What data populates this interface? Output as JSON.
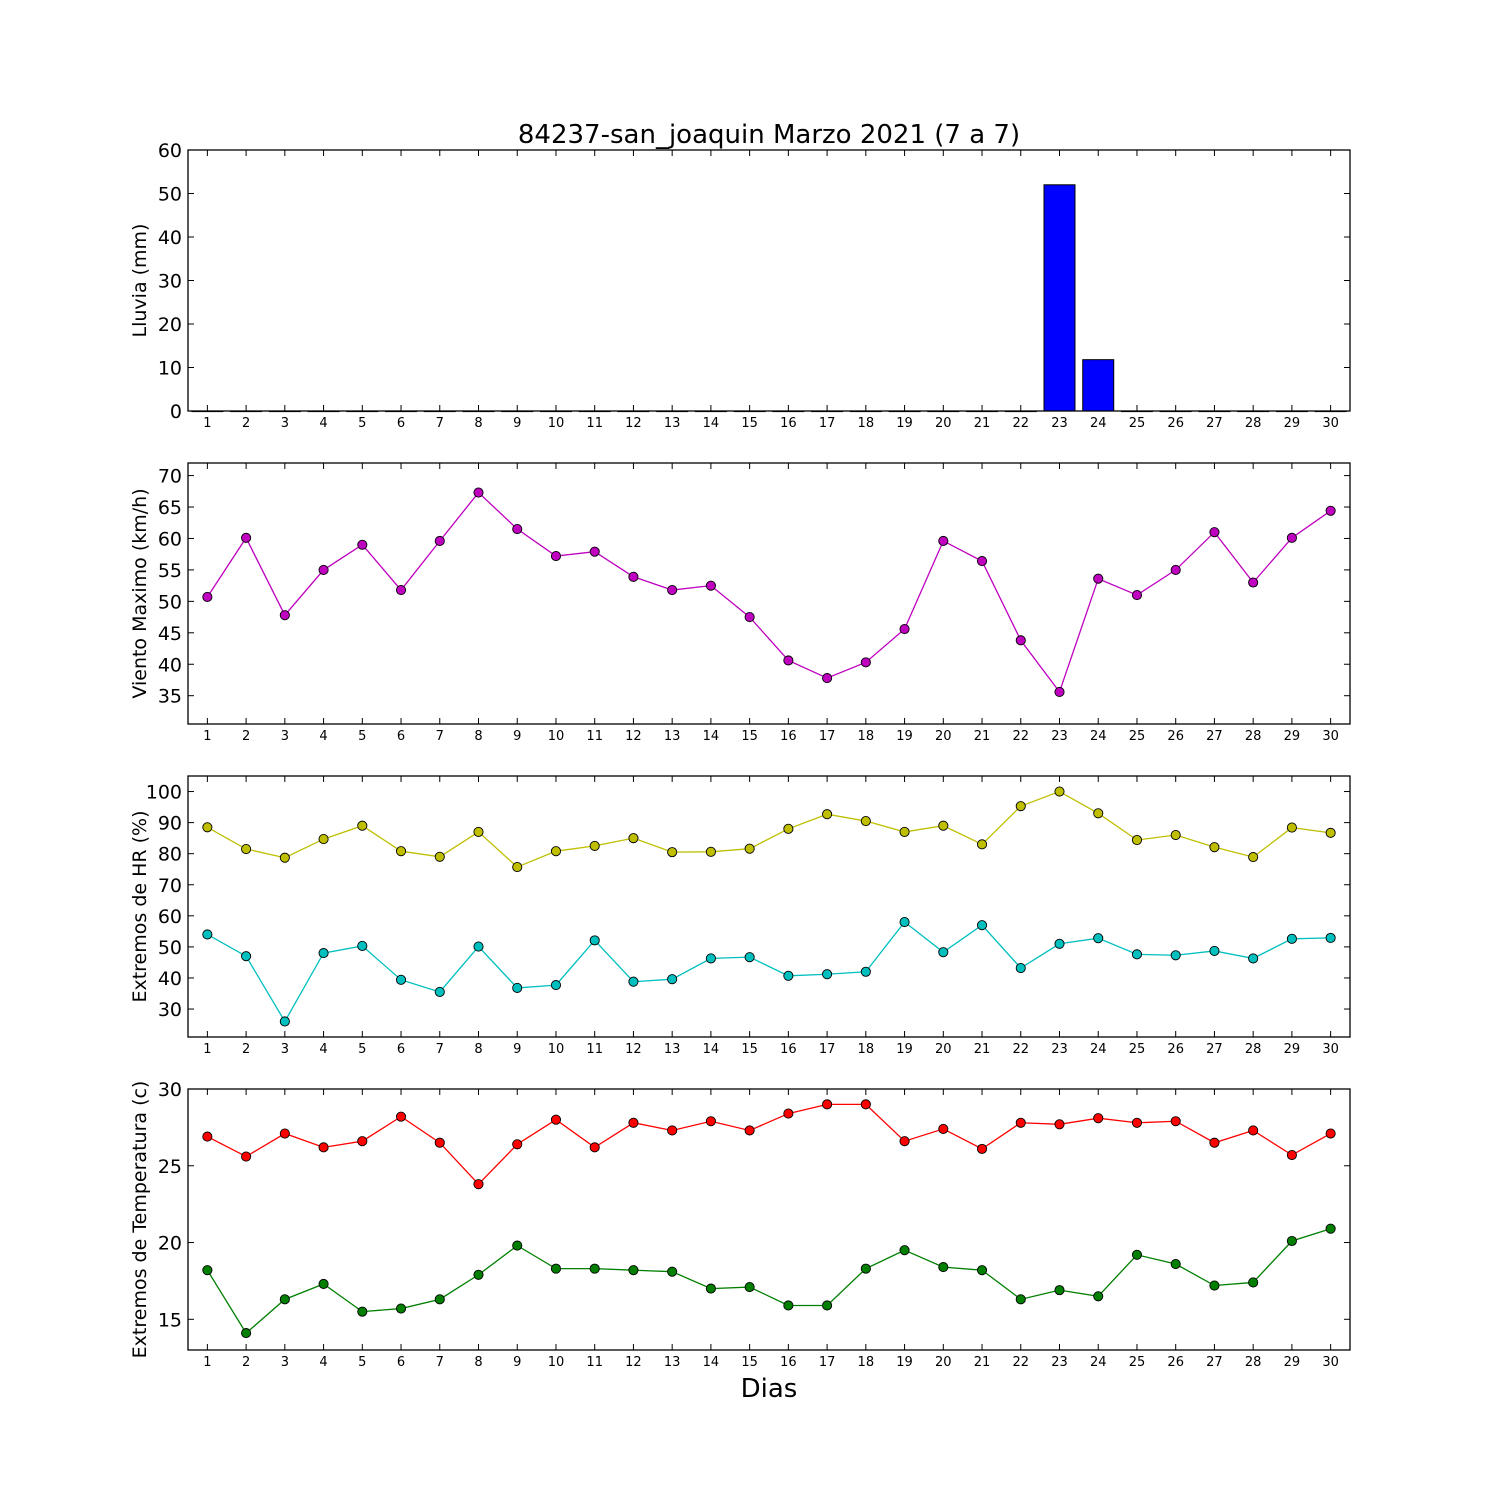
{
  "figure": {
    "title": "84237-san_joaquin Marzo 2021  (7 a 7)",
    "xlabel": "Dias"
  },
  "chart_data": [
    {
      "type": "bar",
      "ylabel": "Lluvia (mm)",
      "x": [
        1,
        2,
        3,
        4,
        5,
        6,
        7,
        8,
        9,
        10,
        11,
        12,
        13,
        14,
        15,
        16,
        17,
        18,
        19,
        20,
        21,
        22,
        23,
        24,
        25,
        26,
        27,
        28,
        29,
        30
      ],
      "series": [
        {
          "color": "#0000ff",
          "values": [
            0,
            0,
            0,
            0,
            0,
            0,
            0,
            0,
            0,
            0,
            0,
            0,
            0,
            0,
            0,
            0,
            0,
            0,
            0,
            0,
            0,
            0,
            52.0,
            11.8,
            0,
            0,
            0,
            0,
            0,
            0
          ]
        }
      ],
      "ylim": [
        0,
        60
      ],
      "yticks": [
        0,
        10,
        20,
        30,
        40,
        50,
        60
      ]
    },
    {
      "type": "line",
      "ylabel": "Viento Maximo (km/h)",
      "x": [
        1,
        2,
        3,
        4,
        5,
        6,
        7,
        8,
        9,
        10,
        11,
        12,
        13,
        14,
        15,
        16,
        17,
        18,
        19,
        20,
        21,
        22,
        23,
        24,
        25,
        26,
        27,
        28,
        29,
        30
      ],
      "series": [
        {
          "color": "#bf00bf",
          "values": [
            50.7,
            60.1,
            47.8,
            55.0,
            59.0,
            51.8,
            59.6,
            67.3,
            61.5,
            57.2,
            57.9,
            53.9,
            51.8,
            52.5,
            47.5,
            40.6,
            37.8,
            40.3,
            45.6,
            59.6,
            56.4,
            43.8,
            35.6,
            53.6,
            51.0,
            55.0,
            61.0,
            53.0,
            60.1,
            64.4
          ]
        }
      ],
      "ylim": [
        30.5,
        72
      ],
      "yticks": [
        35,
        40,
        45,
        50,
        55,
        60,
        65,
        70
      ]
    },
    {
      "type": "line",
      "ylabel": "Extremos de HR (%)",
      "x": [
        1,
        2,
        3,
        4,
        5,
        6,
        7,
        8,
        9,
        10,
        11,
        12,
        13,
        14,
        15,
        16,
        17,
        18,
        19,
        20,
        21,
        22,
        23,
        24,
        25,
        26,
        27,
        28,
        29,
        30
      ],
      "series": [
        {
          "color": "#bfbf00",
          "values": [
            88.5,
            81.5,
            78.7,
            84.7,
            89.0,
            80.8,
            79.0,
            87.0,
            75.7,
            80.8,
            82.5,
            85.0,
            80.5,
            80.6,
            81.6,
            88.0,
            92.7,
            90.5,
            87.0,
            89.0,
            83.0,
            95.3,
            100.0,
            93.0,
            84.4,
            86.0,
            82.1,
            78.9,
            88.4,
            86.7
          ]
        },
        {
          "color": "#00bfbf",
          "values": [
            54.0,
            47.0,
            26.0,
            48.0,
            50.3,
            39.4,
            35.5,
            50.1,
            36.8,
            37.7,
            52.1,
            38.8,
            39.6,
            46.3,
            46.7,
            40.7,
            41.2,
            42.0,
            58.0,
            48.3,
            57.0,
            43.2,
            51.0,
            52.8,
            47.6,
            47.3,
            48.7,
            46.3,
            52.6,
            52.9
          ]
        }
      ],
      "ylim": [
        21,
        105
      ],
      "yticks": [
        30,
        40,
        50,
        60,
        70,
        80,
        90,
        100
      ]
    },
    {
      "type": "line",
      "ylabel": "Extremos de Temperatura (c)",
      "x": [
        1,
        2,
        3,
        4,
        5,
        6,
        7,
        8,
        9,
        10,
        11,
        12,
        13,
        14,
        15,
        16,
        17,
        18,
        19,
        20,
        21,
        22,
        23,
        24,
        25,
        26,
        27,
        28,
        29,
        30
      ],
      "series": [
        {
          "color": "#ff0000",
          "values": [
            26.9,
            25.6,
            27.1,
            26.2,
            26.6,
            28.2,
            26.5,
            23.8,
            26.4,
            28.0,
            26.2,
            27.8,
            27.3,
            27.9,
            27.3,
            28.4,
            29.0,
            29.0,
            26.6,
            27.4,
            26.1,
            27.8,
            27.7,
            28.1,
            27.8,
            27.9,
            26.5,
            27.3,
            25.7,
            27.1
          ]
        },
        {
          "color": "#007f00",
          "values": [
            18.2,
            14.1,
            16.3,
            17.3,
            15.5,
            15.7,
            16.3,
            17.9,
            19.8,
            18.3,
            18.3,
            18.2,
            18.1,
            17.0,
            17.1,
            15.9,
            15.9,
            18.3,
            19.5,
            18.4,
            18.2,
            16.3,
            16.9,
            16.5,
            19.2,
            18.6,
            17.2,
            17.4,
            20.1,
            20.9
          ]
        }
      ],
      "ylim": [
        13,
        30
      ],
      "yticks": [
        15,
        20,
        25,
        30
      ]
    }
  ]
}
